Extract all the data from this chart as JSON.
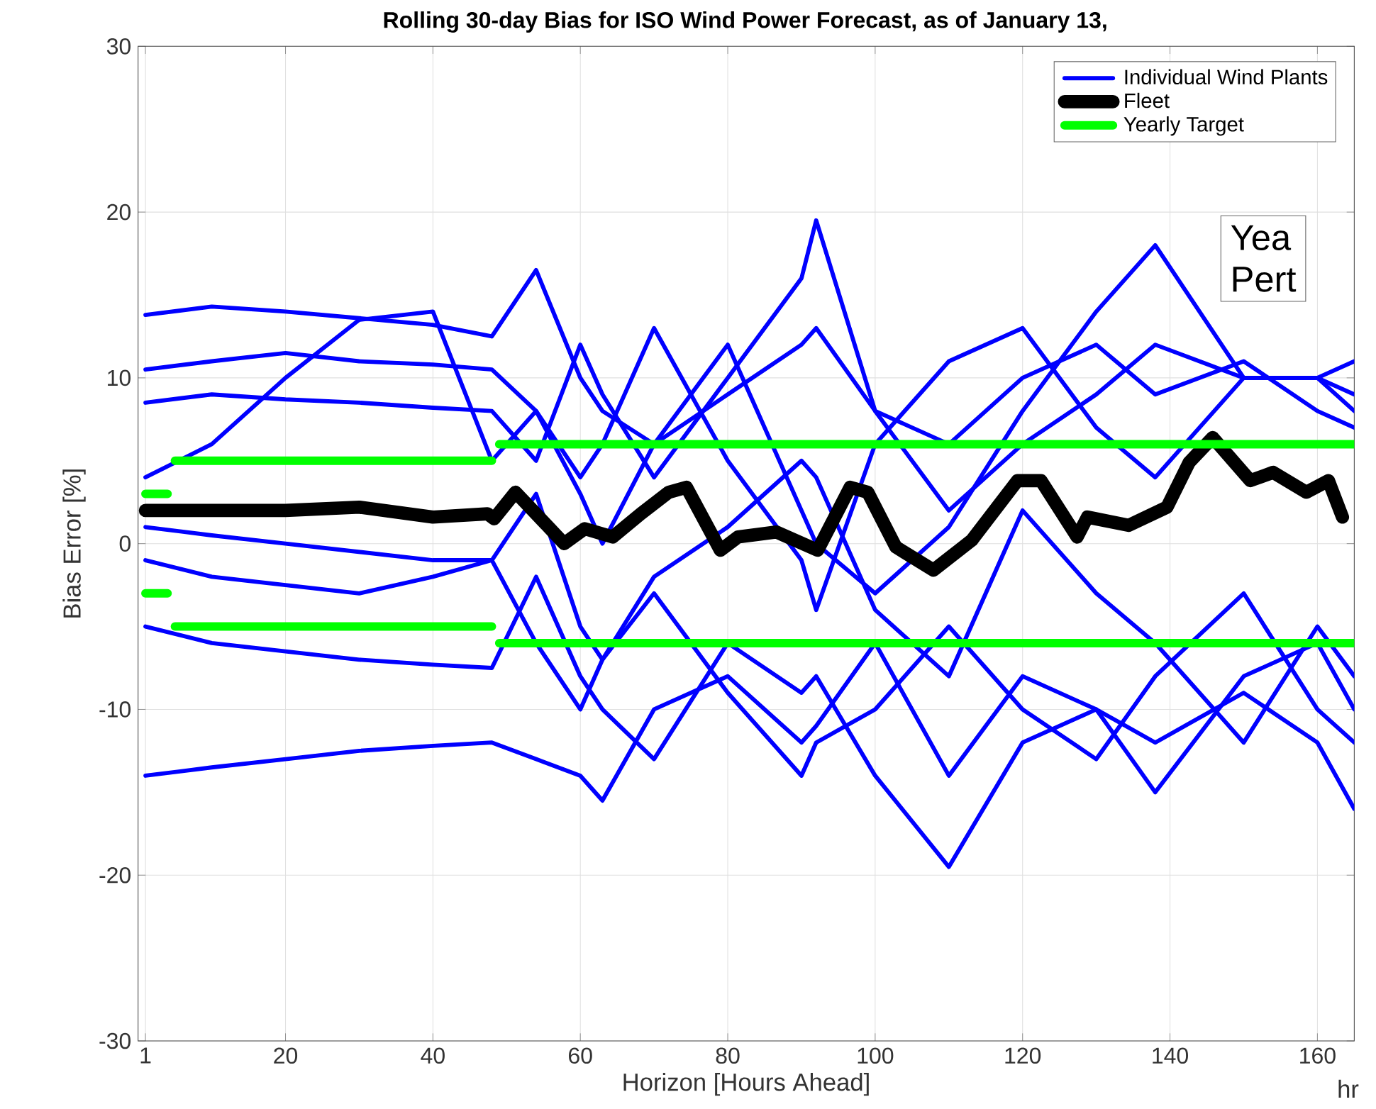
{
  "chart_data": {
    "type": "line",
    "title": "Rolling 30-day Bias for ISO Wind Power Forecast, as of January 13,",
    "xlabel": "Horizon [Hours Ahead]",
    "ylabel": "Bias Error [%]",
    "x": [
      1,
      10,
      20,
      30,
      40,
      48,
      54,
      60,
      63,
      70,
      80,
      90,
      92,
      100,
      110,
      120,
      130,
      138,
      150,
      160,
      165
    ],
    "series": [
      {
        "name": "Individual Wind Plants",
        "color": "#0000ff",
        "values": [
          13.8,
          14.3,
          14.0,
          13.6,
          13.2,
          12.5,
          16.5,
          10,
          8,
          6,
          9,
          12,
          13,
          8,
          6,
          10,
          12,
          9,
          11,
          8,
          7
        ]
      },
      {
        "color": "#0000ff",
        "values": [
          -14,
          -13.5,
          -13,
          -12.5,
          -12.2,
          -12,
          -13,
          -14,
          -15.5,
          -10,
          -8,
          -12,
          -11,
          -6,
          -14,
          -8,
          -10,
          -12,
          -9,
          -12,
          -16
        ]
      },
      {
        "color": "#0000ff",
        "values": [
          8.5,
          9,
          8.7,
          8.5,
          8.2,
          8,
          5,
          12,
          9,
          4,
          10,
          16,
          19.5,
          8,
          2,
          6,
          9,
          12,
          10,
          10,
          8
        ]
      },
      {
        "color": "#0000ff",
        "values": [
          -5,
          -6,
          -6.5,
          -7,
          -7.3,
          -7.5,
          -2,
          -8,
          -10,
          -13,
          -6,
          -9,
          -8,
          -14,
          -19.5,
          -12,
          -10,
          -15,
          -8,
          -6,
          -10
        ]
      },
      {
        "color": "#0000ff",
        "values": [
          4,
          6,
          10,
          13.5,
          14,
          5,
          8,
          3,
          0,
          6,
          12,
          2,
          0,
          -3,
          1,
          8,
          14,
          18,
          10,
          10,
          11
        ]
      },
      {
        "color": "#0000ff",
        "values": [
          -1,
          -2,
          -2.5,
          -3,
          -2,
          -1,
          3,
          -5,
          -7,
          -2,
          1,
          5,
          4,
          -4,
          -8,
          2,
          -3,
          -6,
          -12,
          -5,
          -8
        ]
      },
      {
        "color": "#0000ff",
        "values": [
          10.5,
          11,
          11.5,
          11,
          10.8,
          10.5,
          8,
          4,
          6,
          13,
          5,
          -1,
          -4,
          6,
          11,
          13,
          7,
          4,
          10,
          10,
          9
        ]
      },
      {
        "color": "#0000ff",
        "values": [
          1,
          0.5,
          0,
          -0.5,
          -1,
          -1,
          -6,
          -10,
          -7,
          -3,
          -9,
          -14,
          -12,
          -10,
          -5,
          -10,
          -13,
          -8,
          -3,
          -10,
          -12
        ]
      },
      {
        "name": "Fleet",
        "color": "#000000",
        "x": [
          1,
          20,
          30,
          40,
          47.4,
          48.3,
          51.2,
          55.9,
          57.8,
          60.6,
          64.4,
          68.2,
          72,
          74.4,
          79,
          81.4,
          86.6,
          92.2,
          96.6,
          99,
          102.8,
          107.9,
          113.1,
          119.3,
          122.5,
          127.4,
          128.8,
          134.4,
          139.6,
          142.6,
          145.8,
          150.9,
          154,
          158.5,
          161.5,
          163.4
        ],
        "values": [
          2.0,
          2.0,
          2.2,
          1.6,
          1.8,
          1.5,
          3.1,
          0.9,
          0,
          0.9,
          0.4,
          1.8,
          3.1,
          3.4,
          -0.4,
          0.4,
          0.7,
          -0.4,
          3.4,
          3.1,
          -0.2,
          -1.6,
          0.2,
          3.8,
          3.8,
          0.4,
          1.6,
          1.1,
          2.2,
          4.9,
          6.4,
          3.8,
          4.3,
          3.1,
          3.8,
          1.6
        ]
      },
      {
        "name": "Yearly Target",
        "color": "#00ff00",
        "x": [
          1,
          4,
          4.5,
          5,
          48,
          48.5,
          49,
          165
        ],
        "values": [
          3,
          3,
          null,
          5,
          5,
          null,
          6,
          6
        ]
      },
      {
        "color": "#00ff00",
        "x": [
          1,
          4,
          4.5,
          5,
          48,
          48.5,
          49,
          165
        ],
        "values": [
          -3,
          -3,
          null,
          -5,
          -5,
          null,
          -6,
          -6
        ]
      }
    ],
    "xlim": [
      0,
      165
    ],
    "xticks": [
      1,
      20,
      40,
      60,
      80,
      100,
      120,
      140,
      160
    ],
    "ylim": [
      -30,
      30
    ],
    "yticks": [
      -30,
      -20,
      -10,
      0,
      10,
      20,
      30
    ],
    "grid": true,
    "legend": "top right",
    "annotations": [
      "Yea",
      "Pert",
      "hr"
    ]
  }
}
